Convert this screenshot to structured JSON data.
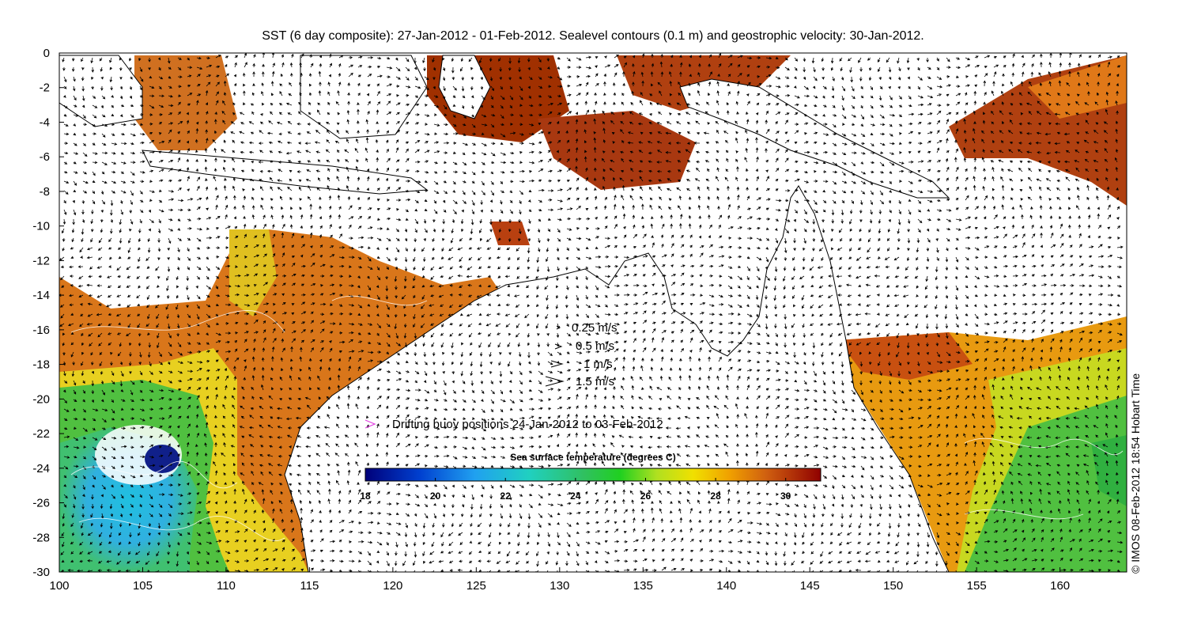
{
  "title": "SST (6 day composite): 27-Jan-2012 - 01-Feb-2012. Sealevel contours (0.1 m) and geostrophic velocity: 30-Jan-2012.",
  "credit": "© IMOS 08-Feb-2012 18:54 Hobart Time",
  "axes": {
    "x_ticks": [
      "100",
      "105",
      "110",
      "115",
      "120",
      "125",
      "130",
      "135",
      "140",
      "145",
      "150",
      "155",
      "160"
    ],
    "y_ticks": [
      "0",
      "-2",
      "-4",
      "-6",
      "-8",
      "-10",
      "-12",
      "-14",
      "-16",
      "-18",
      "-20",
      "-22",
      "-24",
      "-26",
      "-28",
      "-30"
    ],
    "xlim": [
      100,
      164
    ],
    "ylim": [
      -30,
      0
    ]
  },
  "velocity_legend": [
    {
      "speed": 0.25,
      "label": "0.25 m/s"
    },
    {
      "speed": 0.5,
      "label": "0.5 m/s"
    },
    {
      "speed": 1,
      "label": "1 m/s"
    },
    {
      "speed": 1.5,
      "label": "1.5 m/s"
    }
  ],
  "buoy_legend": {
    "label": "Drifting buoy positions 24-Jan-2012 to 03-Feb-2012",
    "color": "#e040e0"
  },
  "colorbar": {
    "title": "Sea surface temperature (degrees C)",
    "ticks": [
      "18",
      "20",
      "22",
      "24",
      "26",
      "28",
      "30"
    ],
    "range": [
      18,
      31
    ]
  }
}
